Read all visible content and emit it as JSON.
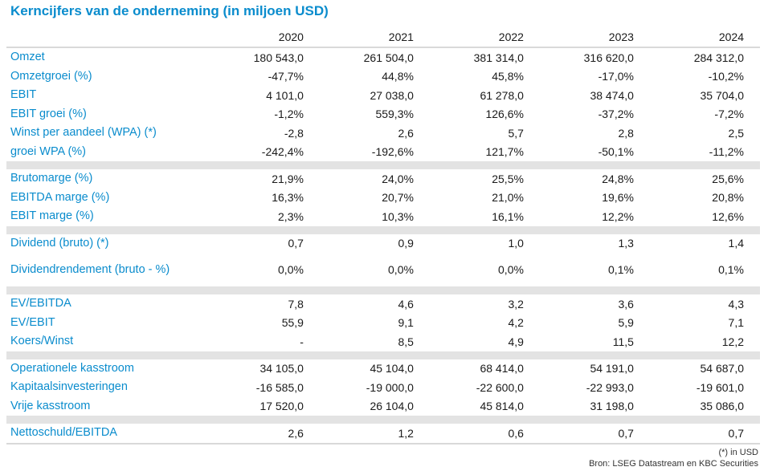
{
  "title": "Kerncijfers van de onderneming (in miljoen USD)",
  "years": [
    "2020",
    "2021",
    "2022",
    "2023",
    "2024"
  ],
  "groups": [
    [
      {
        "label": "Omzet",
        "values": [
          "180 543,0",
          "261 504,0",
          "381 314,0",
          "316 620,0",
          "284 312,0"
        ]
      },
      {
        "label": "Omzetgroei (%)",
        "values": [
          "-47,7%",
          "44,8%",
          "45,8%",
          "-17,0%",
          "-10,2%"
        ]
      },
      {
        "label": "EBIT",
        "values": [
          "4 101,0",
          "27 038,0",
          "61 278,0",
          "38 474,0",
          "35 704,0"
        ]
      },
      {
        "label": "EBIT groei (%)",
        "values": [
          "-1,2%",
          "559,3%",
          "126,6%",
          "-37,2%",
          "-7,2%"
        ]
      },
      {
        "label": "Winst per aandeel (WPA) (*)",
        "values": [
          "-2,8",
          "2,6",
          "5,7",
          "2,8",
          "2,5"
        ]
      },
      {
        "label": "groei WPA (%)",
        "values": [
          "-242,4%",
          "-192,6%",
          "121,7%",
          "-50,1%",
          "-11,2%"
        ]
      }
    ],
    [
      {
        "label": "Brutomarge (%)",
        "values": [
          "21,9%",
          "24,0%",
          "25,5%",
          "24,8%",
          "25,6%"
        ]
      },
      {
        "label": "EBITDA marge (%)",
        "values": [
          "16,3%",
          "20,7%",
          "21,0%",
          "19,6%",
          "20,8%"
        ]
      },
      {
        "label": "EBIT marge (%)",
        "values": [
          "2,3%",
          "10,3%",
          "16,1%",
          "12,2%",
          "12,6%"
        ]
      }
    ],
    [
      {
        "label": "Dividend (bruto) (*)",
        "values": [
          "0,7",
          "0,9",
          "1,0",
          "1,3",
          "1,4"
        ]
      },
      {
        "label": "Dividendrendement (bruto - %)",
        "values": [
          "0,0%",
          "0,0%",
          "0,0%",
          "0,1%",
          "0,1%"
        ]
      }
    ],
    [
      {
        "label": "EV/EBITDA",
        "values": [
          "7,8",
          "4,6",
          "3,2",
          "3,6",
          "4,3"
        ]
      },
      {
        "label": "EV/EBIT",
        "values": [
          "55,9",
          "9,1",
          "4,2",
          "5,9",
          "7,1"
        ]
      },
      {
        "label": "Koers/Winst",
        "values": [
          "-",
          "8,5",
          "4,9",
          "11,5",
          "12,2"
        ]
      }
    ],
    [
      {
        "label": "Operationele kasstroom",
        "values": [
          "34 105,0",
          "45 104,0",
          "68 414,0",
          "54 191,0",
          "54 687,0"
        ]
      },
      {
        "label": "Kapitaalsinvesteringen",
        "values": [
          "-16 585,0",
          "-19 000,0",
          "-22 600,0",
          "-22 993,0",
          "-19 601,0"
        ]
      },
      {
        "label": "Vrije kasstroom",
        "values": [
          "17 520,0",
          "26 104,0",
          "45 814,0",
          "31 198,0",
          "35 086,0"
        ]
      }
    ],
    [
      {
        "label": "Nettoschuld/EBITDA",
        "values": [
          "2,6",
          "1,2",
          "0,6",
          "0,7",
          "0,7"
        ]
      }
    ]
  ],
  "footnotes": {
    "currency_note": "(*) in USD",
    "source": "Bron: LSEG Datastream en KBC Securities"
  }
}
